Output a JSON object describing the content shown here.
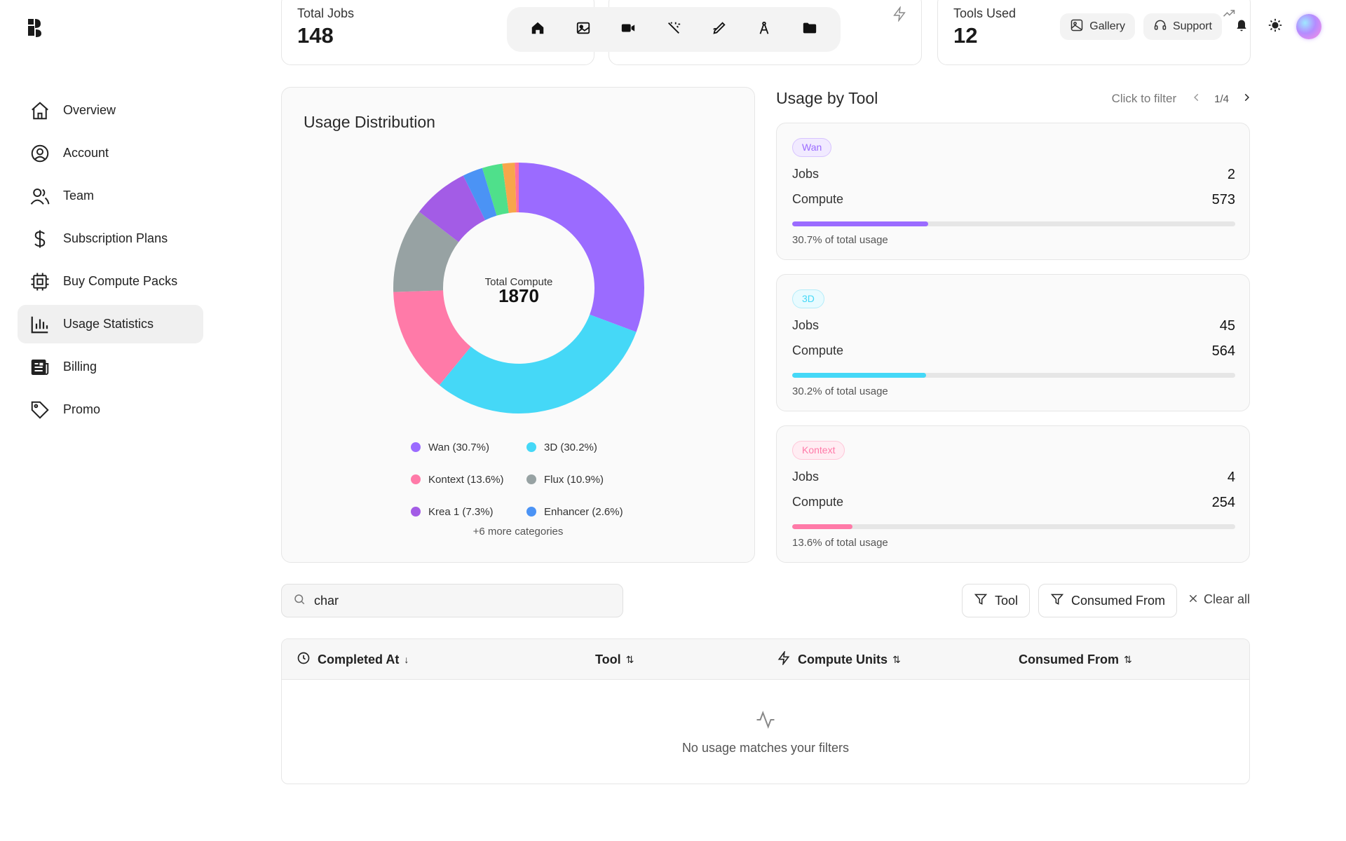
{
  "sidebar": {
    "items": [
      {
        "label": "Overview",
        "icon": "home-icon"
      },
      {
        "label": "Account",
        "icon": "user-circle-icon"
      },
      {
        "label": "Team",
        "icon": "users-icon"
      },
      {
        "label": "Subscription Plans",
        "icon": "dollar-icon"
      },
      {
        "label": "Buy Compute Packs",
        "icon": "chip-icon"
      },
      {
        "label": "Usage Statistics",
        "icon": "bar-chart-icon",
        "active": true
      },
      {
        "label": "Billing",
        "icon": "newspaper-icon"
      },
      {
        "label": "Promo",
        "icon": "tag-icon"
      }
    ]
  },
  "stats": {
    "total_jobs": {
      "title": "Total Jobs",
      "value": "148"
    },
    "tools_used": {
      "title": "Tools Used",
      "value": "12"
    }
  },
  "header": {
    "toolbar_icons": [
      "home-icon",
      "image-icon",
      "video-icon",
      "magic-wand-icon",
      "pen-icon",
      "compass-icon",
      "folder-icon"
    ],
    "gallery_label": "Gallery",
    "support_label": "Support"
  },
  "distribution": {
    "title": "Usage Distribution",
    "center_label": "Total Compute",
    "center_value": "1870",
    "legend": [
      {
        "label": "Wan (30.7%)",
        "color": "#9b6bff"
      },
      {
        "label": "3D (30.2%)",
        "color": "#45d8f7"
      },
      {
        "label": "Kontext (13.6%)",
        "color": "#ff7aa8"
      },
      {
        "label": "Flux (10.9%)",
        "color": "#97a2a3"
      },
      {
        "label": "Krea 1 (7.3%)",
        "color": "#a35ce6"
      },
      {
        "label": "Enhancer (2.6%)",
        "color": "#4b93f5"
      }
    ],
    "more_label": "+6 more categories"
  },
  "chart_data": {
    "type": "pie",
    "title": "Usage Distribution",
    "total": 1870,
    "slices": [
      {
        "name": "Wan",
        "value": 30.7,
        "color": "#9b6bff"
      },
      {
        "name": "3D",
        "value": 30.2,
        "color": "#45d8f7"
      },
      {
        "name": "Kontext",
        "value": 13.6,
        "color": "#ff7aa8"
      },
      {
        "name": "Flux",
        "value": 10.9,
        "color": "#97a2a3"
      },
      {
        "name": "Krea 1",
        "value": 7.3,
        "color": "#a35ce6"
      },
      {
        "name": "Enhancer",
        "value": 2.6,
        "color": "#4b93f5"
      },
      {
        "name": "",
        "value": 2.6,
        "color": "#4fe08b"
      },
      {
        "name": "",
        "value": 1.6,
        "color": "#f7a64b"
      },
      {
        "name": "",
        "value": 0.5,
        "color": "#ff6fa0"
      }
    ]
  },
  "usage_by_tool": {
    "title": "Usage by Tool",
    "filter_hint": "Click to filter",
    "page": "1/4",
    "jobs_label": "Jobs",
    "compute_label": "Compute",
    "tools": [
      {
        "name": "Wan",
        "jobs": "2",
        "compute": "573",
        "pct_label": "30.7% of total usage",
        "pct": 30.7,
        "color": "#9b6bff",
        "badge_bg": "#f1eaff",
        "badge_border": "#d7c3ff"
      },
      {
        "name": "3D",
        "jobs": "45",
        "compute": "564",
        "pct_label": "30.2% of total usage",
        "pct": 30.2,
        "color": "#45d8f7",
        "badge_bg": "#e8fbff",
        "badge_border": "#b4ecf9"
      },
      {
        "name": "Kontext",
        "jobs": "4",
        "compute": "254",
        "pct_label": "13.6% of total usage",
        "pct": 13.6,
        "color": "#ff7aa8",
        "badge_bg": "#ffedf3",
        "badge_border": "#ffc6d8"
      }
    ]
  },
  "filters": {
    "search_value": "char",
    "tool_label": "Tool",
    "consumed_label": "Consumed From",
    "clear_label": "Clear all"
  },
  "table": {
    "columns": [
      {
        "label": "Completed At",
        "sort": "↓"
      },
      {
        "label": "Tool",
        "sort": "⇅"
      },
      {
        "label": "Compute Units",
        "sort": "⇅"
      },
      {
        "label": "Consumed From",
        "sort": "⇅"
      }
    ],
    "empty_message": "No usage matches your filters"
  }
}
